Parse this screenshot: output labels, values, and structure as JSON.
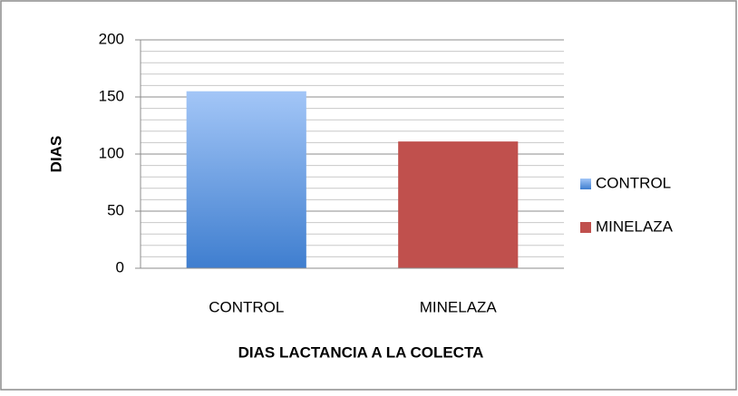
{
  "chart_data": {
    "type": "bar",
    "categories": [
      "CONTROL",
      "MINELAZA"
    ],
    "values": [
      155,
      111
    ],
    "colors": [
      "#3f7ecf",
      "#c0504d"
    ],
    "gradient_top_colors": [
      "#a3c6f7",
      null
    ],
    "y_label": "DIAS",
    "x_label": "DIAS LACTANCIA A LA COLECTA",
    "ylim": [
      0,
      200
    ],
    "yticks": [
      0,
      50,
      100,
      150,
      200
    ],
    "grid": true,
    "minor_grid_step": 10,
    "legend": "right"
  }
}
